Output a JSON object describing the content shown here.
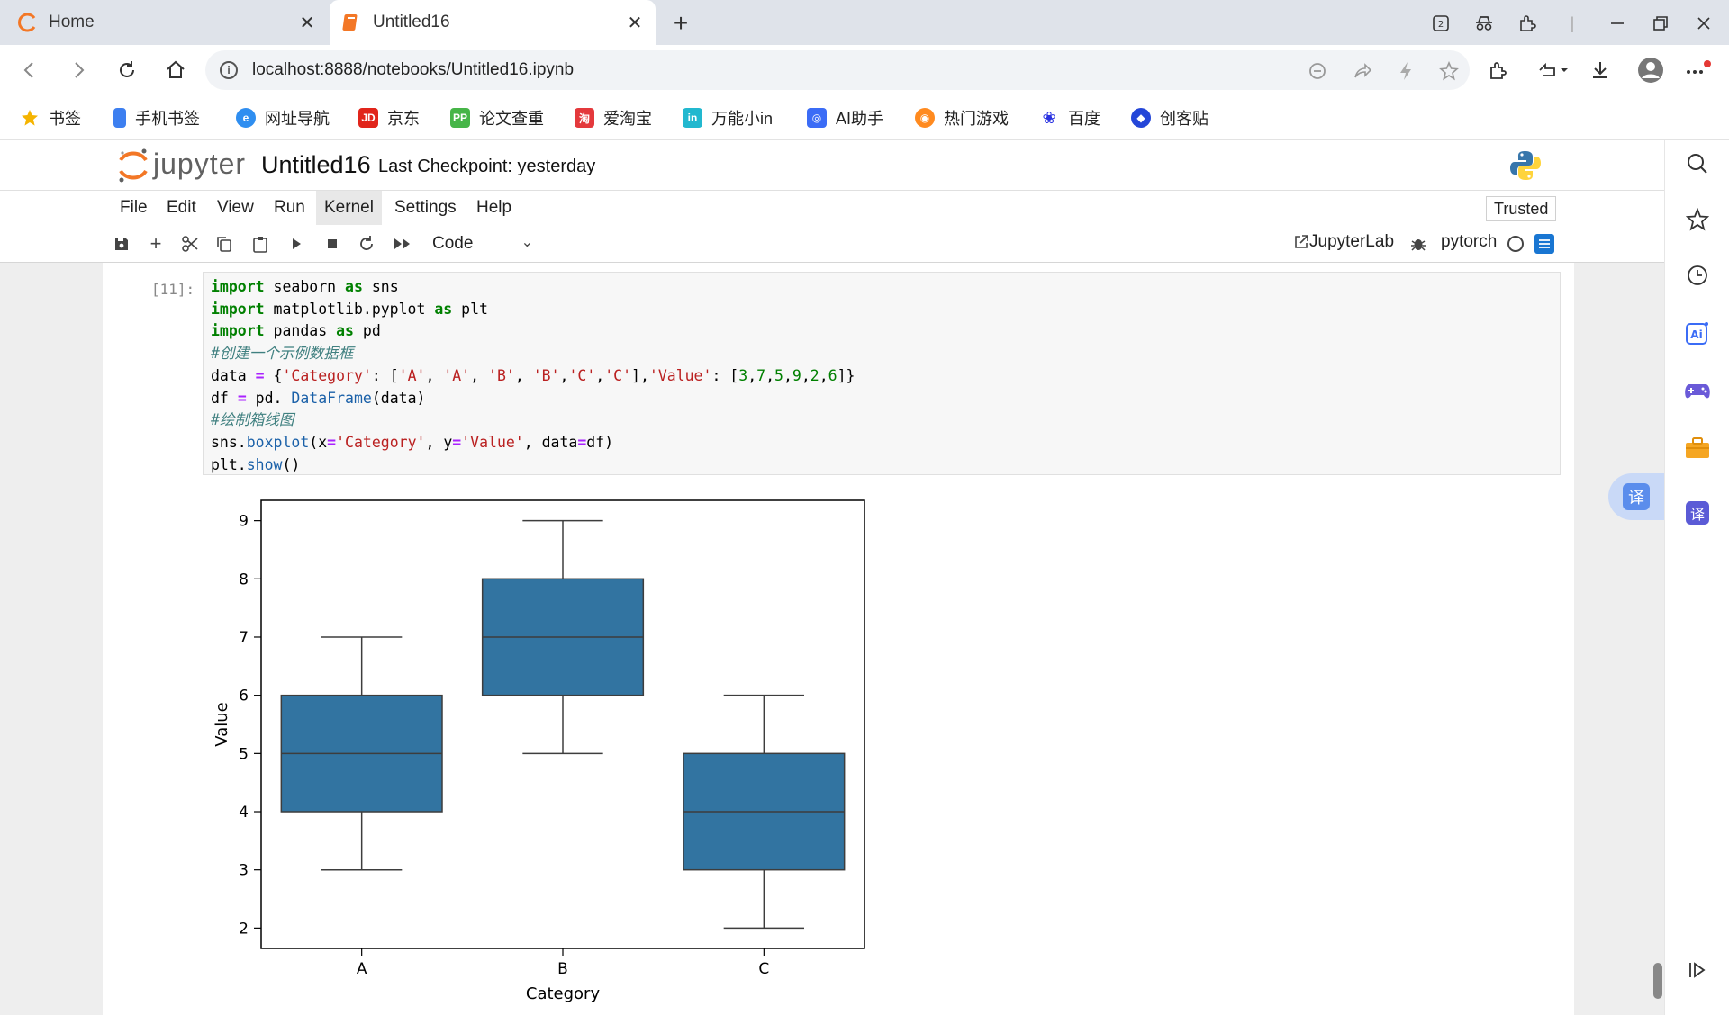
{
  "browser": {
    "tabs": [
      {
        "label": "Home",
        "active": false
      },
      {
        "label": "Untitled16",
        "active": true
      }
    ],
    "url": "localhost:8888/notebooks/Untitled16.ipynb",
    "bookmarks": [
      "书签",
      "手机书签",
      "网址导航",
      "京东",
      "论文查重",
      "爱淘宝",
      "万能小in",
      "AI助手",
      "热门游戏",
      "百度",
      "创客贴"
    ],
    "sidebar_icons": [
      "search-icon",
      "star-icon",
      "history-icon",
      "ai-icon",
      "gamepad-icon",
      "briefcase-icon",
      "translate-icon",
      "collapse-icon"
    ],
    "translate_label": "译"
  },
  "jupyter": {
    "brand": "jupyter",
    "notebook_title": "Untitled16",
    "checkpoint": "Last Checkpoint: yesterday",
    "menu": [
      "File",
      "Edit",
      "View",
      "Run",
      "Kernel",
      "Settings",
      "Help"
    ],
    "active_menu": "Kernel",
    "trusted": "Trusted",
    "cell_type": "Code",
    "jupyterlab_link": "JupyterLab",
    "kernel": "pytorch"
  },
  "cell": {
    "prompt": "[11]:",
    "code": [
      "import seaborn as sns",
      "import matplotlib.pyplot as plt",
      "import pandas as pd",
      "#创建一个示例数据框",
      "data = {'Category': ['A', 'A', 'B', 'B','C','C'],'Value': [3,7,5,9,2,6]}",
      "df = pd. DataFrame(data)",
      "#绘制箱线图",
      "sns.boxplot(x='Category', y='Value', data=df)",
      "plt.show()"
    ]
  },
  "chart_data": {
    "type": "box",
    "categories": [
      "A",
      "B",
      "C"
    ],
    "boxes": [
      {
        "category": "A",
        "min": 3,
        "q1": 4,
        "median": 5,
        "q3": 6,
        "max": 7
      },
      {
        "category": "B",
        "min": 5,
        "q1": 6,
        "median": 7,
        "q3": 8,
        "max": 9
      },
      {
        "category": "C",
        "min": 2,
        "q1": 3,
        "median": 4,
        "q3": 5,
        "max": 6
      }
    ],
    "xlabel": "Category",
    "ylabel": "Value",
    "yticks": [
      2,
      3,
      4,
      5,
      6,
      7,
      8,
      9
    ],
    "ylim": [
      1.65,
      9.35
    ],
    "box_color": "#3274a1",
    "grid": false
  }
}
